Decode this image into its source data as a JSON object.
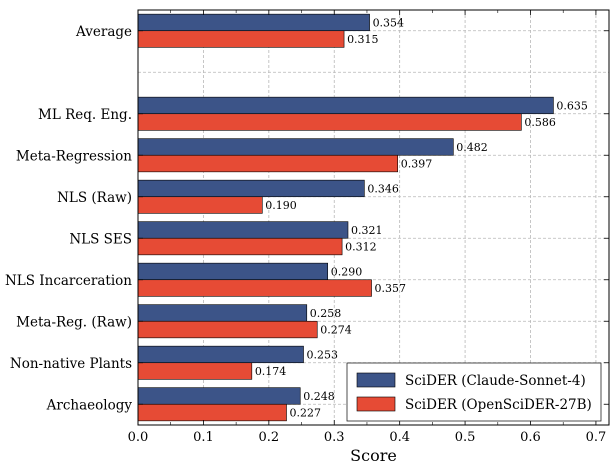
{
  "chart_data": {
    "type": "bar",
    "orientation": "horizontal",
    "categories": [
      "Average",
      "ML Req. Eng.",
      "Meta-Regression",
      "NLS (Raw)",
      "NLS SES",
      "NLS Incarceration",
      "Meta-Reg. (Raw)",
      "Non-native Plants",
      "Archaeology"
    ],
    "series": [
      {
        "name": "SciDER (Claude-Sonnet-4)",
        "color": "#3c5488",
        "values": [
          0.354,
          0.635,
          0.482,
          0.346,
          0.321,
          0.29,
          0.258,
          0.253,
          0.248
        ],
        "labels": [
          "0.354",
          "0.635",
          "0.482",
          "0.346",
          "0.321",
          "0.290",
          "0.258",
          "0.253",
          "0.248"
        ]
      },
      {
        "name": "SciDER (OpenSciDER-27B)",
        "color": "#e64b35",
        "values": [
          0.315,
          0.586,
          0.397,
          0.19,
          0.312,
          0.357,
          0.274,
          0.174,
          0.227
        ],
        "labels": [
          "0.315",
          "0.586",
          "0.397",
          "0.190",
          "0.312",
          "0.357",
          "0.274",
          "0.174",
          "0.227"
        ]
      }
    ],
    "xlabel": "Score",
    "ylabel": "",
    "xlim": [
      0,
      0.72
    ],
    "xticks": [
      "0.0",
      "0.1",
      "0.2",
      "0.3",
      "0.4",
      "0.5",
      "0.6",
      "0.7"
    ],
    "grid": true,
    "legend_position": "bottom-right",
    "separator_after": "Average"
  }
}
